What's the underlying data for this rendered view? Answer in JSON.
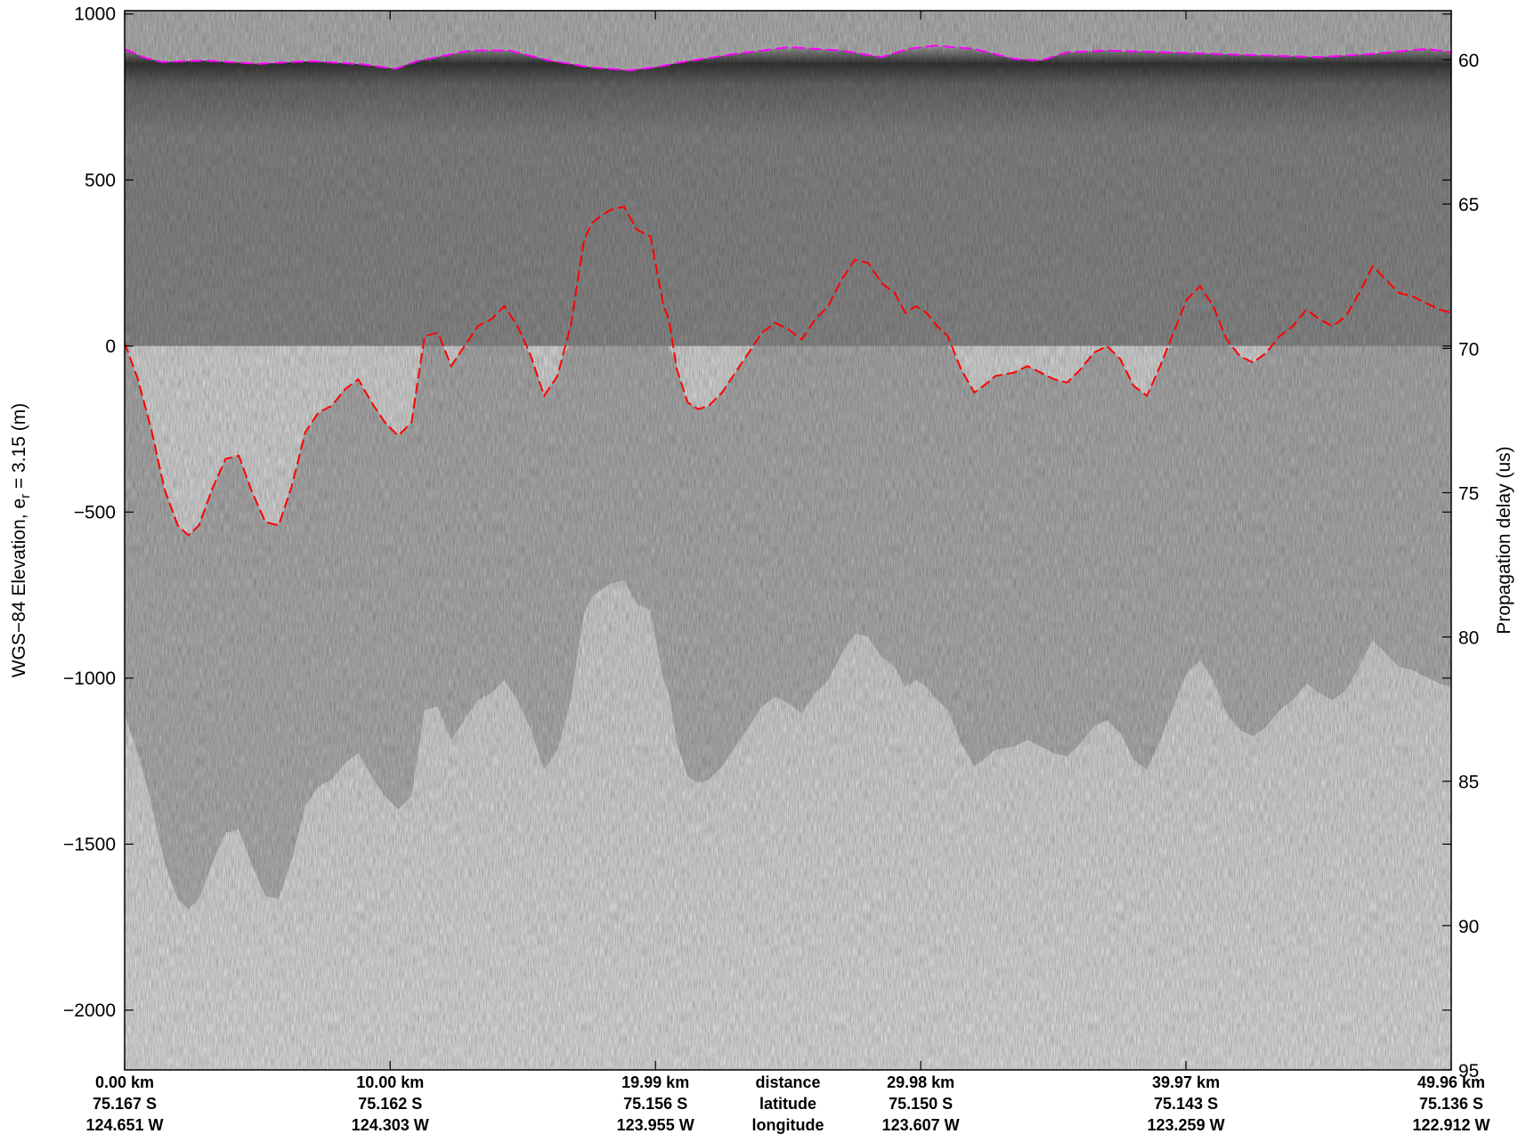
{
  "chart_data": {
    "type": "radargram",
    "ylabel_left": "WGS−84 Elevation, e",
    "ylabel_left_sub": "r",
    "ylabel_left_suffix": " = 3.15 (m)",
    "ylabel_right": "Propagation delay (us)",
    "y_left_range": [
      -2180,
      1010
    ],
    "y_left_ticks": [
      "1000",
      "500",
      "0",
      "−500",
      "−1000",
      "−1500",
      "−2000"
    ],
    "y_left_tick_values": [
      1000,
      500,
      0,
      -500,
      -1000,
      -1500,
      -2000
    ],
    "y_right_range": [
      58.3,
      95
    ],
    "y_right_ticks": [
      "60",
      "65",
      "70",
      "75",
      "80",
      "85",
      "90",
      "95"
    ],
    "y_right_tick_values": [
      60,
      65,
      70,
      75,
      80,
      85,
      90,
      95
    ],
    "x_range_km": [
      0,
      49.96
    ],
    "x_ticks": [
      {
        "km": 0.0,
        "distance": "0.00 km",
        "latitude": "75.167 S",
        "longitude": "124.651 W"
      },
      {
        "km": 10.0,
        "distance": "10.00 km",
        "latitude": "75.162 S",
        "longitude": "124.303 W"
      },
      {
        "km": 19.99,
        "distance": "19.99 km",
        "latitude": "75.156 S",
        "longitude": "123.955 W"
      },
      {
        "km": 29.98,
        "distance": "29.98 km",
        "latitude": "75.150 S",
        "longitude": "123.607 W"
      },
      {
        "km": 39.97,
        "distance": "39.97 km",
        "latitude": "75.143 S",
        "longitude": "123.259 W"
      },
      {
        "km": 49.96,
        "distance": "49.96 km",
        "latitude": "75.136 S",
        "longitude": "122.912 W"
      }
    ],
    "row_labels": {
      "km": 24.98,
      "distance": "distance",
      "latitude": "latitude",
      "longitude": "longitude"
    },
    "surface_pick": {
      "color": "#ff00ff",
      "x_km": [
        0,
        0.7,
        1.4,
        3,
        5,
        7,
        9,
        10.2,
        11,
        13,
        14.5,
        16,
        17.5,
        19,
        20,
        21,
        23,
        25,
        27,
        28.5,
        29.5,
        30.5,
        32,
        33.5,
        34.5,
        35.5,
        37,
        39,
        41,
        43,
        45,
        47,
        49,
        49.96
      ],
      "elev_m": [
        895,
        870,
        855,
        860,
        850,
        858,
        848,
        835,
        858,
        890,
        890,
        860,
        840,
        830,
        840,
        855,
        880,
        900,
        890,
        870,
        895,
        905,
        895,
        865,
        860,
        885,
        890,
        885,
        880,
        875,
        870,
        880,
        895,
        885
      ]
    },
    "bed_pick": {
      "color": "#ff0000",
      "x_km": [
        0,
        0.5,
        1,
        1.5,
        2,
        2.4,
        2.8,
        3.3,
        3.8,
        4.3,
        4.8,
        5.3,
        5.8,
        6.3,
        6.8,
        7.3,
        7.8,
        8.3,
        8.8,
        9.3,
        9.8,
        10.3,
        10.8,
        11.3,
        11.8,
        12.3,
        12.8,
        13.3,
        13.8,
        14.3,
        14.8,
        15.3,
        15.8,
        16.3,
        16.8,
        17.3,
        17.6,
        17.9,
        18.3,
        18.8,
        19.3,
        19.8,
        20.3,
        20.5,
        20.8,
        21.2,
        21.6,
        22,
        22.5,
        23,
        23.5,
        24,
        24.5,
        25,
        25.5,
        26,
        26.5,
        27,
        27.5,
        28,
        28.5,
        29,
        29.4,
        29.8,
        30.2,
        30.6,
        31,
        31.5,
        32,
        32.5,
        32.8,
        33.5,
        34,
        34.5,
        35,
        35.5,
        36,
        36.5,
        37,
        37.5,
        38,
        38.5,
        39,
        39.5,
        40,
        40.5,
        41,
        41.5,
        42,
        42.5,
        43,
        43.5,
        44,
        44.5,
        45,
        45.5,
        46,
        46.5,
        47,
        47.5,
        48,
        48.5,
        49,
        49.5,
        49.96
      ],
      "elev_m": [
        10,
        -100,
        -250,
        -430,
        -540,
        -570,
        -540,
        -430,
        -340,
        -330,
        -440,
        -530,
        -540,
        -420,
        -260,
        -200,
        -180,
        -130,
        -100,
        -170,
        -230,
        -270,
        -230,
        30,
        40,
        -60,
        0,
        60,
        80,
        120,
        60,
        -30,
        -150,
        -90,
        60,
        320,
        370,
        390,
        410,
        420,
        350,
        330,
        120,
        80,
        -70,
        -170,
        -190,
        -180,
        -140,
        -80,
        -20,
        40,
        70,
        50,
        20,
        80,
        120,
        200,
        260,
        250,
        190,
        160,
        100,
        120,
        100,
        60,
        30,
        -70,
        -140,
        -110,
        -90,
        -80,
        -60,
        -80,
        -100,
        -110,
        -70,
        -20,
        0,
        -40,
        -120,
        -150,
        -60,
        40,
        140,
        180,
        120,
        20,
        -30,
        -50,
        -20,
        30,
        60,
        110,
        80,
        60,
        90,
        160,
        240,
        200,
        160,
        150,
        130,
        110,
        100
      ]
    },
    "image_columns_top_elev": {
      "x_km": [
        0,
        5,
        10,
        15,
        20,
        25,
        30,
        35,
        40,
        45,
        49.96
      ],
      "firn_gray": [
        "#8a8a8a",
        "#8c8c8c",
        "#8b8b8b",
        "#8a8a8a",
        "#8b8b8b",
        "#8c8c8c",
        "#8a8a8a",
        "#8b8b8b",
        "#8c8c8c",
        "#8b8b8b",
        "#8a8a8a"
      ]
    }
  }
}
